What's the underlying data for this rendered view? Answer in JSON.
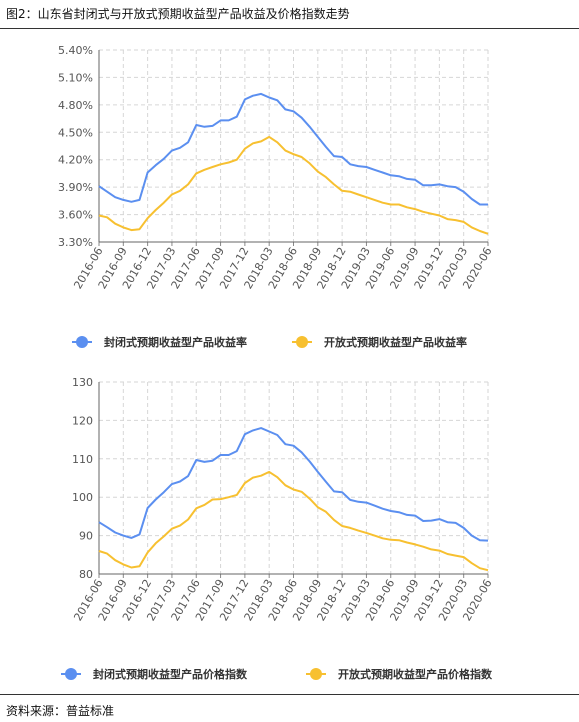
{
  "figure": {
    "title": "图2：山东省封闭式与开放式预期收益型产品收益及价格指数走势",
    "source": "资料来源：普益标准"
  },
  "chart_data": [
    {
      "type": "line",
      "y_ticks": [
        "5.40%",
        "5.10%",
        "4.80%",
        "4.50%",
        "4.20%",
        "3.90%",
        "3.60%",
        "3.30%"
      ],
      "ylim": [
        3.3,
        5.4
      ],
      "y_step": 0.3,
      "x_tick_labels": [
        "2016-06",
        "2016-09",
        "2016-12",
        "2017-03",
        "2017-06",
        "2017-09",
        "2017-12",
        "2018-03",
        "2018-06",
        "2018-09",
        "2018-12",
        "2019-03",
        "2019-06",
        "2019-09",
        "2019-12",
        "2020-03",
        "2020-06"
      ],
      "x_start": "2016-06",
      "x_end": "2020-06",
      "grid": true,
      "legend_position": "bottom",
      "series": [
        {
          "name": "封闭式预期收益型产品收益率",
          "color": "#5b8ff0",
          "values": [
            3.91,
            3.85,
            3.79,
            3.76,
            3.74,
            3.76,
            4.06,
            4.14,
            4.21,
            4.3,
            4.33,
            4.39,
            4.58,
            4.56,
            4.57,
            4.63,
            4.63,
            4.67,
            4.86,
            4.9,
            4.92,
            4.88,
            4.85,
            4.75,
            4.73,
            4.66,
            4.56,
            4.45,
            4.34,
            4.24,
            4.23,
            4.15,
            4.13,
            4.12,
            4.09,
            4.06,
            4.03,
            4.02,
            3.99,
            3.98,
            3.92,
            3.92,
            3.93,
            3.91,
            3.9,
            3.85,
            3.77,
            3.71,
            3.71
          ]
        },
        {
          "name": "开放式预期收益型产品收益率",
          "color": "#f7c030",
          "values": [
            3.59,
            3.57,
            3.5,
            3.46,
            3.43,
            3.44,
            3.56,
            3.65,
            3.73,
            3.82,
            3.86,
            3.93,
            4.05,
            4.09,
            4.12,
            4.15,
            4.17,
            4.2,
            4.32,
            4.38,
            4.4,
            4.45,
            4.39,
            4.3,
            4.26,
            4.23,
            4.16,
            4.07,
            4.01,
            3.93,
            3.86,
            3.85,
            3.82,
            3.79,
            3.76,
            3.73,
            3.71,
            3.71,
            3.68,
            3.66,
            3.63,
            3.61,
            3.59,
            3.55,
            3.54,
            3.52,
            3.46,
            3.42,
            3.39
          ]
        }
      ]
    },
    {
      "type": "line",
      "y_ticks": [
        "130",
        "120",
        "110",
        "100",
        "90",
        "80"
      ],
      "ylim": [
        80,
        130
      ],
      "y_step": 10,
      "x_tick_labels": [
        "2016-06",
        "2016-09",
        "2016-12",
        "2017-03",
        "2017-06",
        "2017-09",
        "2017-12",
        "2018-03",
        "2018-06",
        "2018-09",
        "2018-12",
        "2019-03",
        "2019-06",
        "2019-09",
        "2019-12",
        "2020-03",
        "2020-06"
      ],
      "x_start": "2016-06",
      "x_end": "2020-06",
      "grid": true,
      "legend_position": "bottom",
      "series": [
        {
          "name": "封闭式预期收益型产品价格指数",
          "color": "#5b8ff0",
          "values": [
            93.5,
            92.2,
            90.8,
            90.0,
            89.4,
            90.3,
            97.2,
            99.4,
            101.3,
            103.4,
            104.1,
            105.5,
            109.7,
            109.2,
            109.5,
            111.0,
            111.0,
            112.0,
            116.4,
            117.4,
            118.0,
            117.1,
            116.2,
            113.8,
            113.4,
            111.7,
            109.3,
            106.6,
            104.0,
            101.5,
            101.3,
            99.3,
            98.8,
            98.6,
            97.8,
            97.0,
            96.4,
            96.1,
            95.4,
            95.2,
            93.8,
            93.9,
            94.3,
            93.5,
            93.3,
            92.0,
            90.0,
            88.8,
            88.7
          ]
        },
        {
          "name": "开放式预期收益型产品价格指数",
          "color": "#f7c030",
          "values": [
            86.0,
            85.3,
            83.6,
            82.5,
            81.7,
            82.0,
            85.6,
            88.0,
            89.8,
            91.8,
            92.6,
            94.2,
            97.1,
            98.0,
            99.4,
            99.5,
            100.0,
            100.6,
            103.7,
            105.1,
            105.6,
            106.6,
            105.2,
            103.1,
            102.0,
            101.4,
            99.6,
            97.4,
            96.2,
            94.1,
            92.5,
            92.0,
            91.3,
            90.7,
            90.0,
            89.3,
            88.9,
            88.8,
            88.2,
            87.7,
            87.1,
            86.4,
            86.1,
            85.2,
            84.8,
            84.4,
            82.8,
            81.5,
            81.0
          ]
        }
      ]
    }
  ]
}
